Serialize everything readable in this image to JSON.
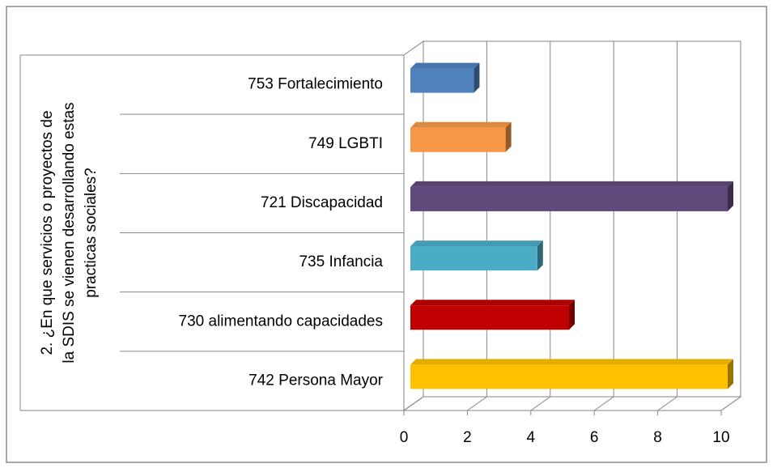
{
  "chart_data": {
    "type": "bar3d_horizontal",
    "y_label": [
      "2. ¿En que servicios o proyectos de",
      "la SDIS se vienen desarrollando estas",
      "practicas sociales?"
    ],
    "categories": [
      "753 Fortalecimiento",
      "749 LGBTI",
      "721 Discapacidad",
      "735 Infancia",
      "730 alimentando capacidades",
      "742 Persona Mayor"
    ],
    "values": [
      2,
      3,
      10,
      4,
      5,
      10
    ],
    "colors": [
      "#4f81bd",
      "#f79646",
      "#604a7b",
      "#4bacc6",
      "#c00000",
      "#ffc000"
    ],
    "xlim": [
      0,
      10
    ],
    "xticks": [
      0,
      2,
      4,
      6,
      8,
      10
    ],
    "grid": true
  }
}
